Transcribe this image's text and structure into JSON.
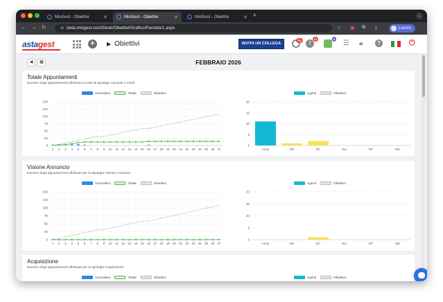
{
  "browser": {
    "tabs": [
      {
        "title": "MioGest - Obiettivi",
        "active": false
      },
      {
        "title": "MioGest - Obiettivi",
        "active": true
      },
      {
        "title": "MioGest - Obiettivi",
        "active": false
      }
    ],
    "url": "beta.miogest.com/Desk/Obiettivi/Grafico/Periodo/1.aspx",
    "profile_label": "Lavoro"
  },
  "header": {
    "logo_part1": "asta",
    "logo_part2": "gest",
    "title": "Obiettivi",
    "invite_label": "INVITA UN COLLEGA",
    "badges": {
      "notifications": "7%",
      "alerts": "10",
      "user": "4"
    },
    "flag_colors": [
      "#2a9a3f",
      "#ffffff",
      "#d92b32"
    ]
  },
  "month": {
    "label": "FEBBRAIO 2026"
  },
  "legend_labels": {
    "daily": "Giornaliero",
    "total": "Totale",
    "target": "Obiettivo",
    "agents": "Agenti"
  },
  "colors": {
    "daily": "#2b8ae6",
    "total": "#5bb85b",
    "target": "#999999",
    "agents": "#14b8d4",
    "agents_target": "#f8e25a"
  },
  "sections": [
    {
      "title": "Totale Appuntamenti",
      "subtitle": "Numero degli appuntamenti effettuati eccetto le tipologie vacanze e simili.",
      "chart_data": [
        {
          "type": "line",
          "x": [
            1,
            2,
            3,
            4,
            5,
            6,
            7,
            8,
            9,
            10,
            11,
            12,
            13,
            14,
            15,
            16,
            17,
            18,
            19,
            20,
            21,
            22,
            23,
            24,
            25,
            26,
            27
          ],
          "ylim": [
            0,
            150
          ],
          "yticks": [
            0,
            25,
            50,
            75,
            100,
            125,
            150
          ],
          "series": [
            {
              "name": "Giornaliero",
              "values": [
                0,
                1,
                1,
                3,
                4,
                2,
                0,
                0,
                0,
                0,
                0,
                0,
                0,
                0,
                0,
                2,
                0,
                0,
                0,
                0,
                0,
                0,
                0,
                0,
                0,
                0,
                0
              ]
            },
            {
              "name": "Totale",
              "values": [
                1,
                2,
                3,
                6,
                10,
                12,
                12,
                12,
                12,
                12,
                12,
                12,
                12,
                12,
                12,
                14,
                14,
                14,
                14,
                14,
                14,
                14,
                14,
                14,
                14,
                14,
                14
              ]
            },
            {
              "name": "Obiettivo",
              "values": [
                0,
                4,
                9,
                13,
                18,
                22,
                27,
                31,
                31,
                36,
                40,
                45,
                49,
                54,
                58,
                58,
                63,
                67,
                72,
                76,
                81,
                85,
                90,
                94,
                99,
                103,
                108
              ]
            }
          ]
        },
        {
          "type": "bar",
          "categories": [
            "Anna",
            "DN",
            "EC",
            "ELI",
            "GF",
            "SM"
          ],
          "ylim": [
            0,
            20
          ],
          "yticks": [
            0,
            5,
            10,
            15,
            20
          ],
          "series": [
            {
              "name": "Agenti",
              "values": [
                11,
                0,
                0,
                0,
                0,
                0
              ]
            },
            {
              "name": "Obiettivo",
              "values": [
                0,
                1,
                2,
                0,
                0,
                0
              ]
            }
          ]
        }
      ]
    },
    {
      "title": "Visione Annuncio",
      "subtitle": "Numero degli appuntamenti effettuati per la tipologia Visione Annuncio.",
      "chart_data": [
        {
          "type": "line",
          "x": [
            1,
            2,
            3,
            4,
            5,
            6,
            7,
            8,
            9,
            10,
            11,
            12,
            13,
            14,
            15,
            16,
            17,
            18,
            19,
            20,
            21,
            22,
            23,
            24,
            25,
            26,
            27
          ],
          "ylim": [
            0,
            150
          ],
          "yticks": [
            0,
            25,
            50,
            75,
            100,
            125,
            150
          ],
          "series": [
            {
              "name": "Giornaliero",
              "values": [
                0,
                0,
                0,
                0,
                0,
                0,
                0,
                0,
                0,
                0,
                0,
                0,
                0,
                0,
                0,
                0,
                0,
                0,
                0,
                0,
                0,
                0,
                0,
                0,
                0,
                0,
                0
              ]
            },
            {
              "name": "Totale",
              "values": [
                0,
                0,
                0,
                0,
                0,
                0,
                0,
                0,
                0,
                0,
                0,
                0,
                0,
                0,
                0,
                0,
                0,
                0,
                0,
                0,
                0,
                0,
                0,
                0,
                0,
                0,
                0
              ]
            },
            {
              "name": "Obiettivo",
              "values": [
                0,
                4,
                9,
                13,
                18,
                22,
                27,
                31,
                31,
                36,
                40,
                45,
                49,
                54,
                58,
                58,
                63,
                67,
                72,
                76,
                81,
                85,
                90,
                94,
                99,
                103,
                108
              ]
            }
          ]
        },
        {
          "type": "bar",
          "categories": [
            "Anna",
            "DN",
            "EC",
            "ELI",
            "GF",
            "SM"
          ],
          "ylim": [
            0,
            20
          ],
          "yticks": [
            0,
            5,
            10,
            15,
            20
          ],
          "series": [
            {
              "name": "Agenti",
              "values": [
                0,
                0,
                0,
                0,
                0,
                0
              ]
            },
            {
              "name": "Obiettivo",
              "values": [
                0,
                0,
                1,
                0,
                0,
                0
              ]
            }
          ]
        }
      ]
    },
    {
      "title": "Acquisizione",
      "subtitle": "Numero degli appuntamenti effettuati per la tipologia Acquisizione."
    }
  ]
}
